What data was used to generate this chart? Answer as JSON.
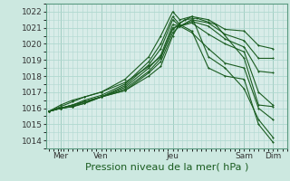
{
  "bg_color": "#cce8e0",
  "plot_bg_color": "#d8ece8",
  "grid_color": "#b0d8d0",
  "line_color": "#1a5c20",
  "xlabel": "Pression niveau de la mer( hPa )",
  "ylim": [
    1013.5,
    1022.5
  ],
  "yticks": [
    1014,
    1015,
    1016,
    1017,
    1018,
    1019,
    1020,
    1021,
    1022
  ],
  "xtick_labels": [
    "Mer",
    "Ven",
    "Jeu",
    "Sam",
    "Dim"
  ],
  "xtick_pos": [
    0.05,
    0.22,
    0.52,
    0.82,
    0.94
  ],
  "xlabel_fontsize": 8,
  "ytick_fontsize": 6.5,
  "xtick_fontsize": 6.5,
  "vline_pos": [
    0.05,
    0.22,
    0.52,
    0.82,
    0.94
  ],
  "lines": [
    {
      "x": [
        0.0,
        0.05,
        0.1,
        0.15,
        0.22,
        0.32,
        0.42,
        0.47,
        0.52,
        0.55,
        0.6,
        0.67,
        0.74,
        0.82,
        0.88,
        0.94
      ],
      "y": [
        1015.8,
        1016.1,
        1016.4,
        1016.7,
        1017.0,
        1017.8,
        1019.2,
        1020.5,
        1022.0,
        1021.5,
        1021.7,
        1019.2,
        1018.5,
        1017.2,
        1015.3,
        1014.2
      ]
    },
    {
      "x": [
        0.0,
        0.05,
        0.1,
        0.15,
        0.22,
        0.32,
        0.42,
        0.47,
        0.52,
        0.55,
        0.6,
        0.67,
        0.74,
        0.82,
        0.88,
        0.94
      ],
      "y": [
        1015.8,
        1016.0,
        1016.2,
        1016.5,
        1016.8,
        1017.5,
        1018.9,
        1020.0,
        1021.7,
        1021.2,
        1020.8,
        1018.5,
        1018.0,
        1017.8,
        1015.0,
        1013.9
      ]
    },
    {
      "x": [
        0.0,
        0.05,
        0.1,
        0.15,
        0.22,
        0.32,
        0.42,
        0.47,
        0.52,
        0.55,
        0.6,
        0.67,
        0.74,
        0.82,
        0.88,
        0.94
      ],
      "y": [
        1015.8,
        1016.0,
        1016.2,
        1016.4,
        1016.7,
        1017.4,
        1018.7,
        1019.7,
        1021.5,
        1021.1,
        1020.7,
        1019.7,
        1018.8,
        1018.5,
        1016.0,
        1015.3
      ]
    },
    {
      "x": [
        0.0,
        0.05,
        0.1,
        0.15,
        0.22,
        0.32,
        0.42,
        0.47,
        0.52,
        0.55,
        0.6,
        0.67,
        0.74,
        0.82,
        0.88,
        0.94
      ],
      "y": [
        1015.8,
        1016.0,
        1016.2,
        1016.4,
        1016.7,
        1017.3,
        1018.5,
        1019.3,
        1021.2,
        1021.1,
        1021.3,
        1020.6,
        1020.0,
        1019.5,
        1017.0,
        1016.2
      ]
    },
    {
      "x": [
        0.0,
        0.05,
        0.1,
        0.15,
        0.22,
        0.32,
        0.42,
        0.47,
        0.52,
        0.55,
        0.6,
        0.67,
        0.74,
        0.82,
        0.88,
        0.94
      ],
      "y": [
        1015.8,
        1016.0,
        1016.1,
        1016.4,
        1016.7,
        1017.2,
        1018.3,
        1019.1,
        1021.0,
        1021.1,
        1021.4,
        1021.1,
        1020.3,
        1019.8,
        1018.3,
        1018.2
      ]
    },
    {
      "x": [
        0.0,
        0.05,
        0.1,
        0.15,
        0.22,
        0.32,
        0.42,
        0.47,
        0.52,
        0.55,
        0.6,
        0.67,
        0.74,
        0.82,
        0.88,
        0.94
      ],
      "y": [
        1015.8,
        1016.0,
        1016.1,
        1016.3,
        1016.7,
        1017.1,
        1018.2,
        1018.9,
        1020.7,
        1021.1,
        1021.5,
        1021.3,
        1020.6,
        1020.2,
        1019.1,
        1019.1
      ]
    },
    {
      "x": [
        0.0,
        0.05,
        0.1,
        0.15,
        0.22,
        0.32,
        0.42,
        0.47,
        0.52,
        0.55,
        0.6,
        0.67,
        0.74,
        0.82,
        0.88,
        0.94
      ],
      "y": [
        1015.8,
        1016.0,
        1016.1,
        1016.3,
        1016.7,
        1017.1,
        1018.0,
        1018.6,
        1020.5,
        1021.3,
        1021.7,
        1021.5,
        1020.9,
        1020.8,
        1019.9,
        1019.7
      ]
    },
    {
      "x": [
        0.0,
        0.05,
        0.1,
        0.15,
        0.22,
        0.32,
        0.42,
        0.47,
        0.52,
        0.57,
        0.62,
        0.7,
        0.82,
        0.88,
        0.94
      ],
      "y": [
        1015.8,
        1016.2,
        1016.5,
        1016.7,
        1017.0,
        1017.6,
        1018.6,
        1019.2,
        1020.9,
        1021.5,
        1021.6,
        1021.2,
        1019.1,
        1016.2,
        1016.1
      ]
    }
  ]
}
